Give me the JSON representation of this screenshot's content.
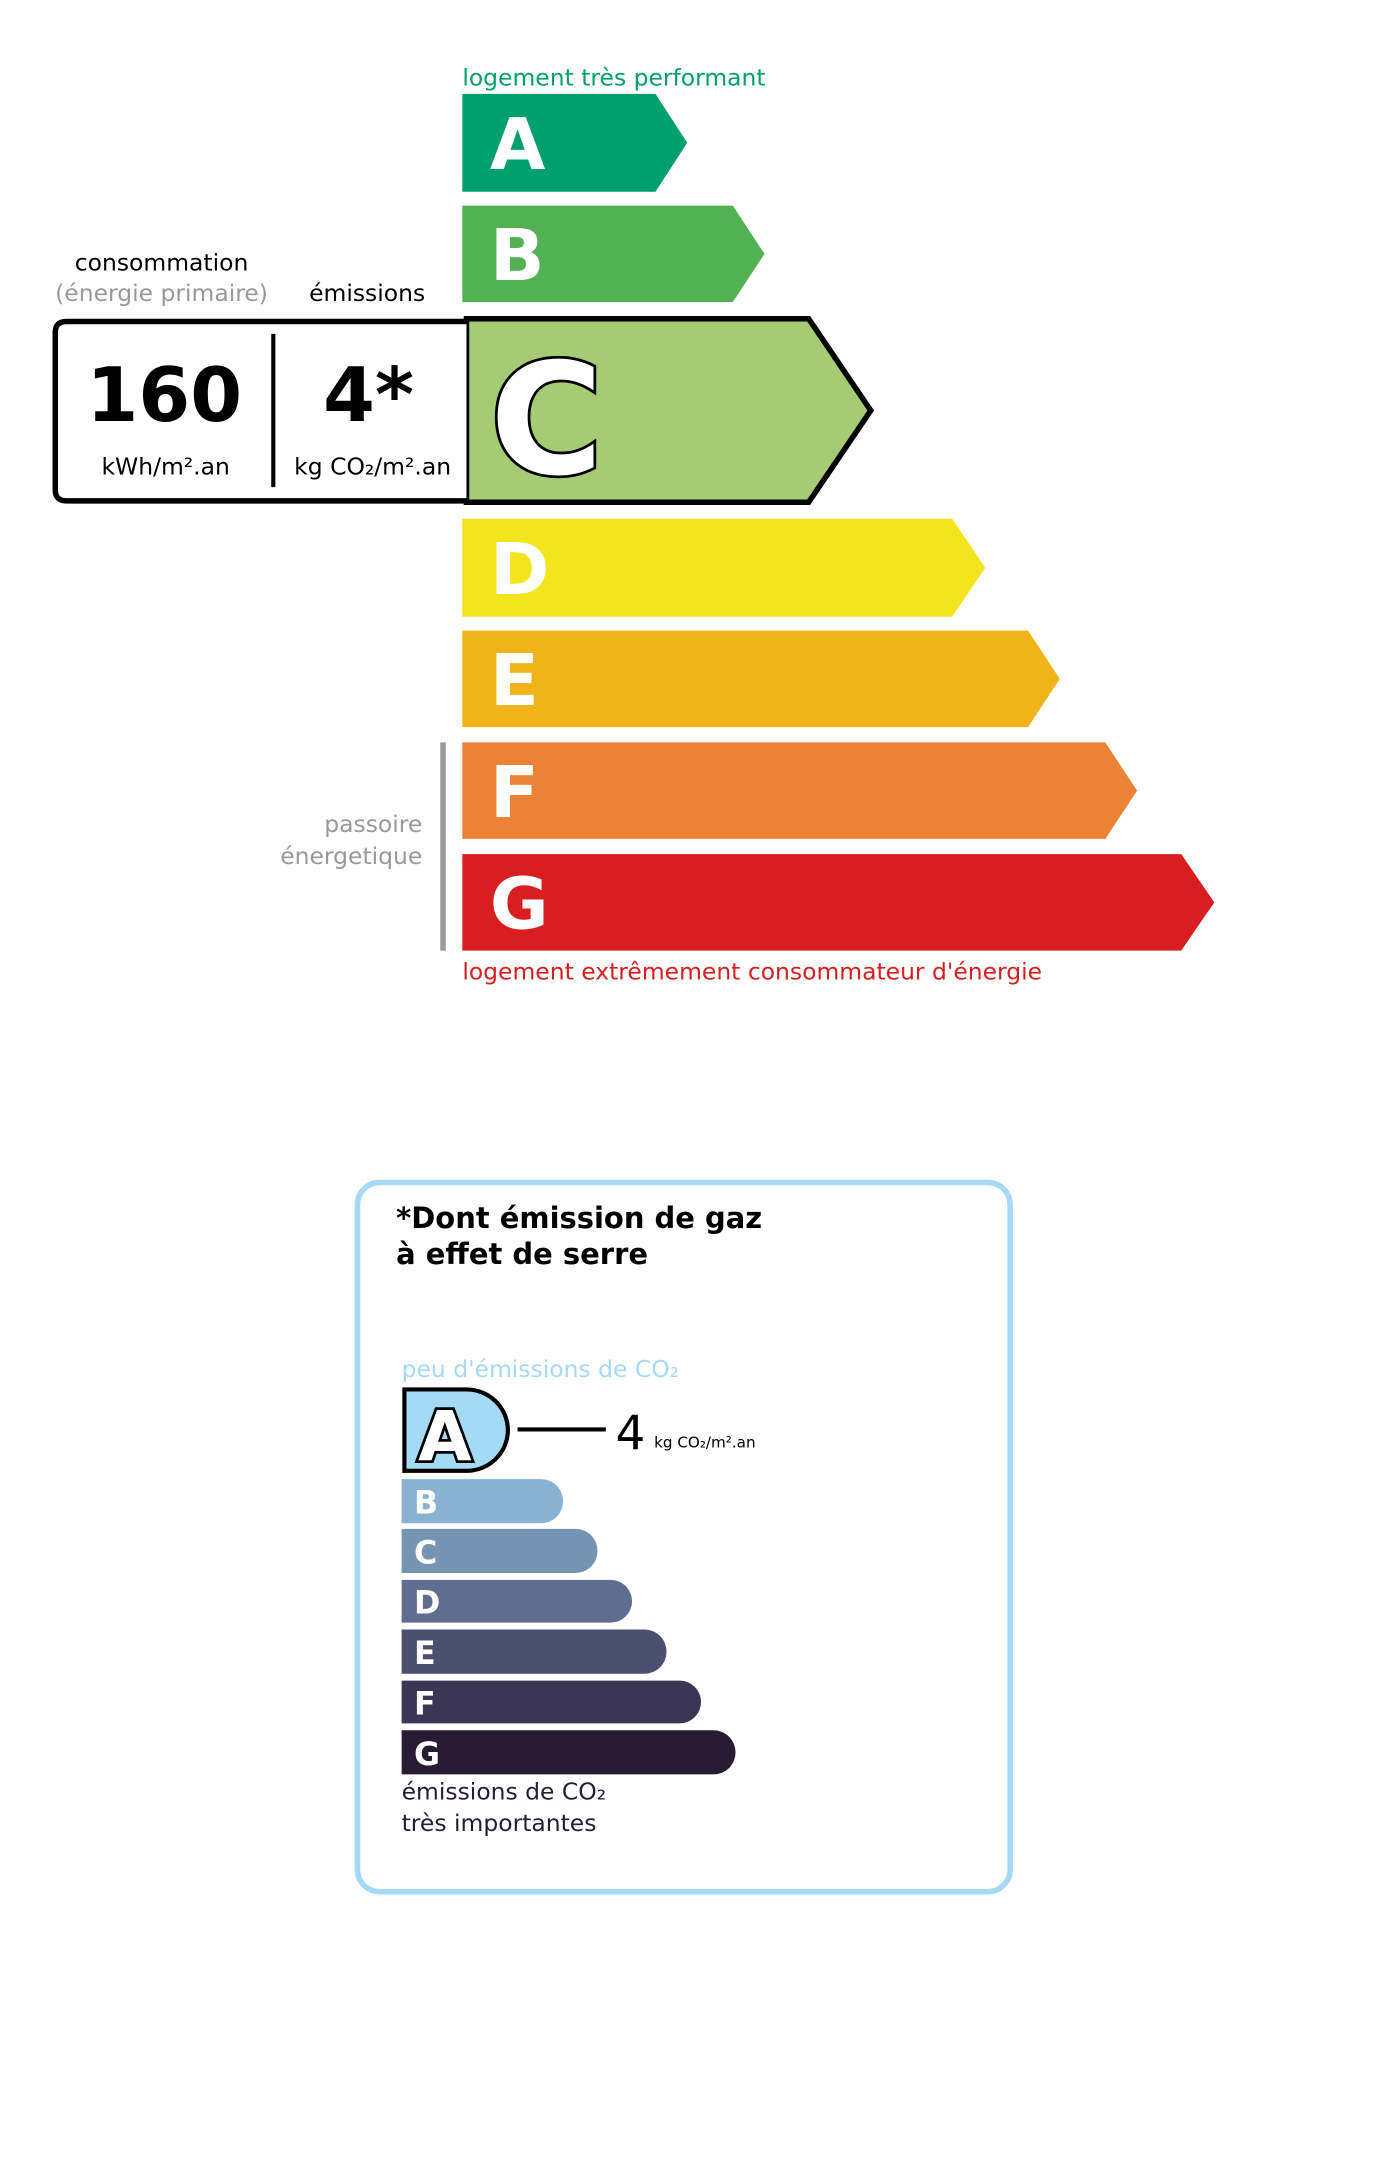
{
  "energy": {
    "top_label": "logement très performant",
    "bottom_label": "logement extrêmement consommateur d'énergie",
    "passoire_line1": "passoire",
    "passoire_line2": "énergetique",
    "current_class": "C",
    "classes": [
      {
        "letter": "A",
        "color": "#00a06c"
      },
      {
        "letter": "B",
        "color": "#52b153"
      },
      {
        "letter": "C",
        "color": "#a5cc74"
      },
      {
        "letter": "D",
        "color": "#f2e51d"
      },
      {
        "letter": "E",
        "color": "#f0b41a"
      },
      {
        "letter": "F",
        "color": "#eb8235"
      },
      {
        "letter": "G",
        "color": "#d81e21"
      }
    ],
    "consumption_label": "consommation",
    "consumption_sublabel": "(énergie primaire)",
    "emissions_label": "émissions",
    "consumption_value": "160",
    "consumption_unit": "kWh/m².an",
    "emissions_value": "4*",
    "emissions_unit": "kg CO₂/m².an"
  },
  "ges": {
    "title_line1": "*Dont émission de gaz",
    "title_line2": "à effet de serre",
    "top_label": "peu d'émissions de CO₂",
    "bottom_line1": "émissions de CO₂",
    "bottom_line2": "très importantes",
    "current_class": "A",
    "value": "4",
    "unit": "kg CO₂/m².an",
    "border_color": "#a4daf6",
    "classes": [
      {
        "letter": "A",
        "color": "#a4daf6"
      },
      {
        "letter": "B",
        "color": "#8ab3d3"
      },
      {
        "letter": "C",
        "color": "#7594b3"
      },
      {
        "letter": "D",
        "color": "#5f6e8f"
      },
      {
        "letter": "E",
        "color": "#4c5070"
      },
      {
        "letter": "F",
        "color": "#3a3653"
      },
      {
        "letter": "G",
        "color": "#2a1b34"
      }
    ]
  }
}
